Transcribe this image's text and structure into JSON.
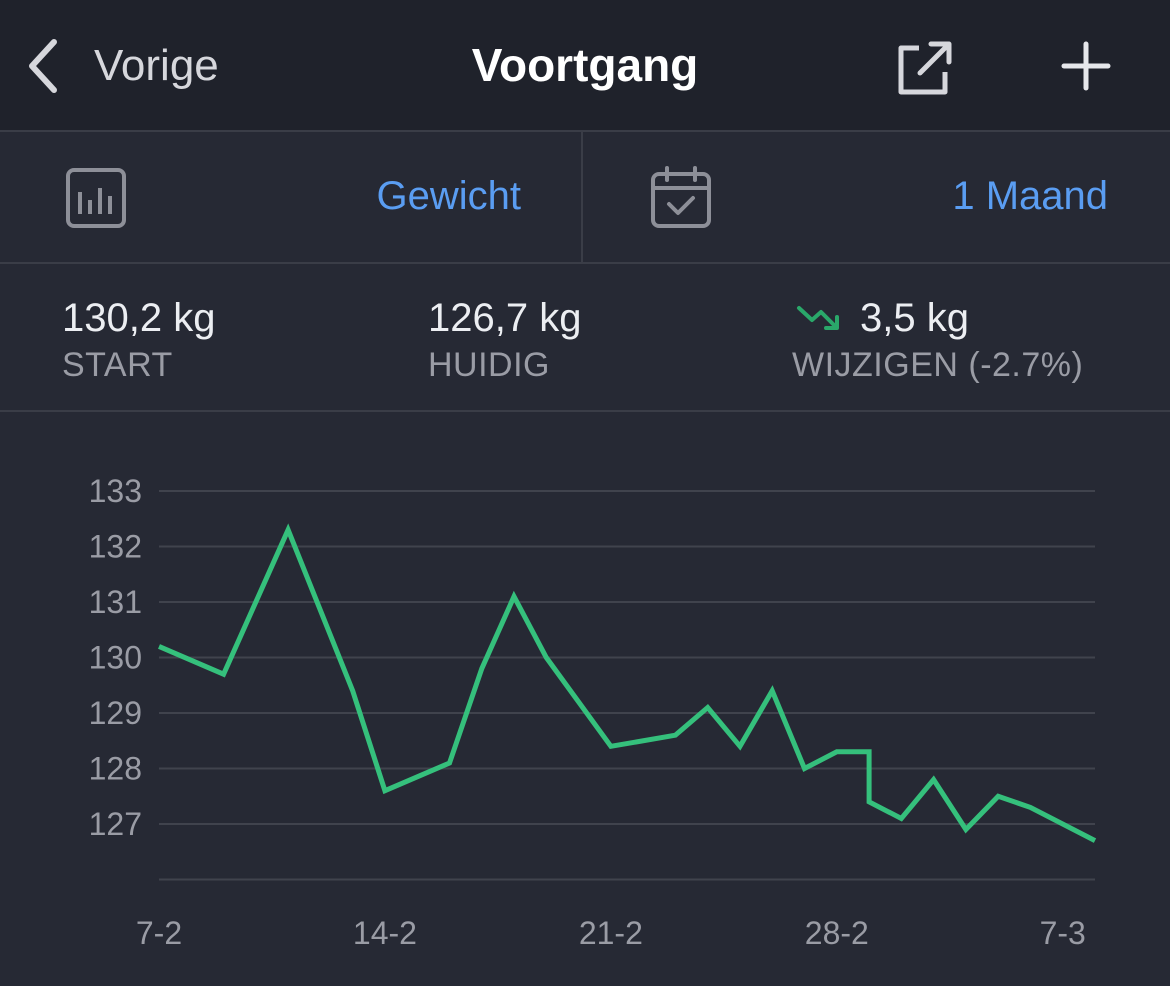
{
  "nav": {
    "back_label": "Vorige",
    "title": "Voortgang",
    "icons": {
      "back": "chevron-left-icon",
      "share": "share-icon",
      "add": "plus-icon"
    }
  },
  "filters": {
    "metric": {
      "icon": "bar-chart-icon",
      "value": "Gewicht"
    },
    "period": {
      "icon": "calendar-check-icon",
      "value": "1 Maand"
    }
  },
  "stats": {
    "start": {
      "value": "130,2 kg",
      "label": "START"
    },
    "current": {
      "value": "126,7 kg",
      "label": "HUIDIG"
    },
    "change": {
      "icon": "trend-down-icon",
      "value": "3,5 kg",
      "label": "WIJZIGEN (-2.7%)"
    }
  },
  "colors": {
    "background": "#262934",
    "navbar": "#1f222b",
    "accent": "#5a9df2",
    "line": "#35c07c",
    "trend_down": "#2aa86a"
  },
  "chart_data": {
    "type": "line",
    "title": "",
    "xlabel": "",
    "ylabel": "",
    "x_ticks": [
      "7-2",
      "14-2",
      "21-2",
      "28-2",
      "7-3"
    ],
    "y_ticks": [
      133,
      132,
      131,
      130,
      129,
      128,
      127
    ],
    "ylim": [
      126,
      133
    ],
    "grid": true,
    "series": [
      {
        "x": [
          "7-2",
          "9-2",
          "11-2",
          "13-2",
          "14-2",
          "16-2",
          "17-2",
          "18-2",
          "19-2",
          "21-2",
          "23-2",
          "24-2",
          "25-2",
          "26-2",
          "27-2",
          "28-2",
          "29-2",
          "1-3",
          "2-3",
          "3-3",
          "4-3",
          "5-3",
          "6-3",
          "8-3"
        ],
        "values": [
          130.2,
          129.7,
          132.3,
          129.4,
          127.6,
          128.1,
          129.8,
          131.1,
          130.0,
          128.4,
          128.6,
          129.1,
          128.4,
          129.4,
          128.0,
          128.3,
          128.3,
          127.4,
          127.1,
          127.8,
          126.9,
          127.5,
          127.3,
          126.7
        ]
      }
    ]
  }
}
